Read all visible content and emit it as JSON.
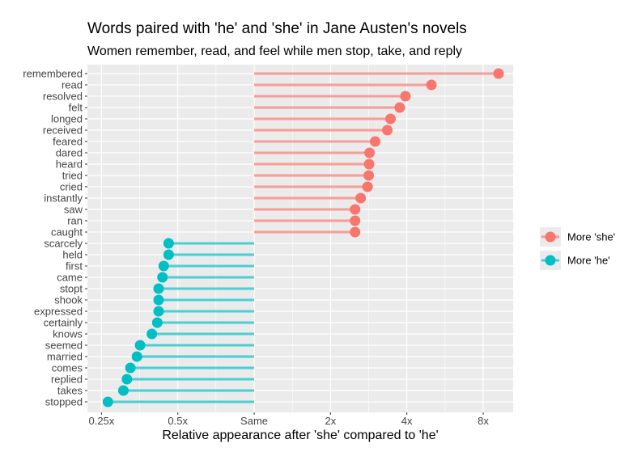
{
  "chart_data": {
    "type": "lollipop",
    "title": "Words paired with 'he' and 'she' in Jane Austen's novels",
    "subtitle": "Women remember, read, and feel while men stop, take, and reply",
    "xlabel": "Relative appearance after 'she' compared to 'he'",
    "ylabel": "",
    "x_scale": "log2",
    "x_ticks": [
      {
        "value": 0.25,
        "label": "0.25x"
      },
      {
        "value": 0.5,
        "label": "0.5x"
      },
      {
        "value": 1,
        "label": "Same"
      },
      {
        "value": 2,
        "label": "2x"
      },
      {
        "value": 4,
        "label": "4x"
      },
      {
        "value": 8,
        "label": "8x"
      }
    ],
    "xlim": [
      0.22,
      10.5
    ],
    "grid": true,
    "legend": {
      "position": "right",
      "entries": [
        {
          "label": "More 'she'",
          "color": "#F8766D"
        },
        {
          "label": "More 'he'",
          "color": "#00BFC4"
        }
      ]
    },
    "colors": {
      "she": "#F8766D",
      "he": "#00BFC4",
      "panel": "#EBEBEB"
    },
    "series": [
      {
        "word": "remembered",
        "value": 9.2,
        "group": "she"
      },
      {
        "word": "read",
        "value": 5.0,
        "group": "she"
      },
      {
        "word": "resolved",
        "value": 3.95,
        "group": "she"
      },
      {
        "word": "felt",
        "value": 3.75,
        "group": "she"
      },
      {
        "word": "longed",
        "value": 3.45,
        "group": "she"
      },
      {
        "word": "received",
        "value": 3.35,
        "group": "she"
      },
      {
        "word": "feared",
        "value": 3.0,
        "group": "she"
      },
      {
        "word": "dared",
        "value": 2.85,
        "group": "she"
      },
      {
        "word": "heard",
        "value": 2.84,
        "group": "she"
      },
      {
        "word": "tried",
        "value": 2.83,
        "group": "she"
      },
      {
        "word": "cried",
        "value": 2.8,
        "group": "she"
      },
      {
        "word": "instantly",
        "value": 2.63,
        "group": "she"
      },
      {
        "word": "saw",
        "value": 2.5,
        "group": "she"
      },
      {
        "word": "ran",
        "value": 2.5,
        "group": "she"
      },
      {
        "word": "caught",
        "value": 2.5,
        "group": "she"
      },
      {
        "word": "scarcely",
        "value": 0.46,
        "group": "he"
      },
      {
        "word": "held",
        "value": 0.46,
        "group": "he"
      },
      {
        "word": "first",
        "value": 0.44,
        "group": "he"
      },
      {
        "word": "came",
        "value": 0.435,
        "group": "he"
      },
      {
        "word": "stopt",
        "value": 0.42,
        "group": "he"
      },
      {
        "word": "shook",
        "value": 0.42,
        "group": "he"
      },
      {
        "word": "expressed",
        "value": 0.42,
        "group": "he"
      },
      {
        "word": "certainly",
        "value": 0.415,
        "group": "he"
      },
      {
        "word": "knows",
        "value": 0.395,
        "group": "he"
      },
      {
        "word": "seemed",
        "value": 0.355,
        "group": "he"
      },
      {
        "word": "married",
        "value": 0.345,
        "group": "he"
      },
      {
        "word": "comes",
        "value": 0.325,
        "group": "he"
      },
      {
        "word": "replied",
        "value": 0.315,
        "group": "he"
      },
      {
        "word": "takes",
        "value": 0.305,
        "group": "he"
      },
      {
        "word": "stopped",
        "value": 0.265,
        "group": "he"
      }
    ]
  }
}
